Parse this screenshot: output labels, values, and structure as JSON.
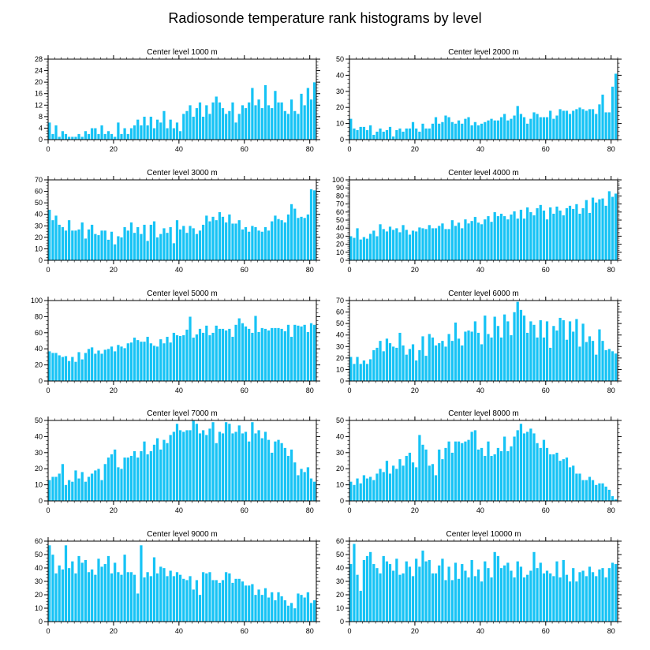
{
  "title": "Radiosonde temperature rank histograms by level",
  "bar_color": "#16c3f5",
  "bar_edge_color": "#ffffff",
  "chart_data": [
    {
      "type": "bar",
      "title": "Center level 1000 m",
      "x_start": 0,
      "xlim": [
        0,
        82
      ],
      "xticks": [
        0,
        20,
        40,
        60,
        80
      ],
      "ylim": [
        0,
        28
      ],
      "yticks": [
        0,
        4,
        8,
        12,
        16,
        20,
        24,
        28
      ],
      "values": [
        6,
        2,
        5,
        1,
        3,
        2,
        1,
        1,
        1,
        2,
        1,
        3,
        2,
        4,
        4,
        2,
        5,
        2,
        3,
        2,
        1,
        6,
        2,
        4,
        2,
        4,
        5,
        7,
        5,
        8,
        5,
        8,
        4,
        7,
        6,
        10,
        4,
        7,
        4,
        6,
        3,
        9,
        10,
        12,
        8,
        11,
        13,
        8,
        12,
        9,
        13,
        15,
        13,
        11,
        9,
        10,
        13,
        6,
        9,
        12,
        11,
        13,
        18,
        12,
        14,
        11,
        19,
        12,
        11,
        17,
        13,
        13,
        10,
        9,
        14,
        10,
        9,
        16,
        12,
        18,
        14,
        20
      ]
    },
    {
      "type": "bar",
      "title": "Center level 2000 m",
      "x_start": 0,
      "xlim": [
        0,
        82
      ],
      "xticks": [
        0,
        20,
        40,
        60,
        80
      ],
      "ylim": [
        0,
        50
      ],
      "yticks": [
        0,
        10,
        20,
        30,
        40,
        50
      ],
      "values": [
        13,
        7,
        6,
        8,
        8,
        6,
        9,
        3,
        5,
        7,
        5,
        6,
        8,
        2,
        6,
        7,
        5,
        7,
        7,
        11,
        7,
        5,
        10,
        7,
        7,
        10,
        14,
        10,
        11,
        15,
        14,
        11,
        10,
        12,
        10,
        13,
        14,
        9,
        11,
        9,
        10,
        11,
        12,
        13,
        12,
        12,
        14,
        16,
        12,
        13,
        15,
        21,
        16,
        14,
        10,
        13,
        17,
        16,
        14,
        14,
        14,
        18,
        13,
        15,
        19,
        18,
        18,
        16,
        18,
        19,
        20,
        19,
        18,
        19,
        19,
        16,
        22,
        28,
        17,
        17,
        33,
        41
      ]
    },
    {
      "type": "bar",
      "title": "Center level 3000 m",
      "x_start": 0,
      "xlim": [
        0,
        82
      ],
      "xticks": [
        0,
        20,
        40,
        60,
        80
      ],
      "ylim": [
        0,
        70
      ],
      "yticks": [
        0,
        10,
        20,
        30,
        40,
        50,
        60,
        70
      ],
      "values": [
        44,
        35,
        39,
        31,
        29,
        26,
        35,
        26,
        26,
        27,
        33,
        19,
        27,
        31,
        23,
        22,
        26,
        26,
        18,
        25,
        14,
        21,
        20,
        29,
        26,
        33,
        24,
        29,
        23,
        31,
        17,
        31,
        34,
        20,
        23,
        28,
        24,
        29,
        15,
        35,
        27,
        30,
        24,
        30,
        28,
        23,
        26,
        31,
        39,
        34,
        38,
        35,
        42,
        38,
        33,
        40,
        32,
        32,
        35,
        27,
        29,
        25,
        30,
        29,
        26,
        25,
        29,
        26,
        34,
        39,
        36,
        35,
        33,
        40,
        49,
        45,
        37,
        38,
        37,
        40,
        62,
        61
      ]
    },
    {
      "type": "bar",
      "title": "Center level 4000 m",
      "x_start": 0,
      "xlim": [
        0,
        82
      ],
      "xticks": [
        0,
        20,
        40,
        60,
        80
      ],
      "ylim": [
        0,
        100
      ],
      "yticks": [
        0,
        10,
        20,
        30,
        40,
        50,
        60,
        70,
        80,
        90,
        100
      ],
      "values": [
        30,
        28,
        40,
        26,
        29,
        27,
        33,
        37,
        30,
        45,
        39,
        36,
        42,
        38,
        40,
        35,
        44,
        38,
        32,
        37,
        36,
        41,
        40,
        39,
        44,
        40,
        40,
        43,
        46,
        39,
        39,
        50,
        43,
        47,
        40,
        51,
        46,
        49,
        54,
        47,
        45,
        51,
        55,
        48,
        60,
        55,
        58,
        55,
        51,
        57,
        61,
        52,
        63,
        52,
        66,
        60,
        56,
        65,
        69,
        62,
        51,
        66,
        58,
        67,
        62,
        56,
        65,
        68,
        64,
        70,
        58,
        65,
        75,
        59,
        78,
        72,
        76,
        77,
        68,
        86,
        79,
        83
      ]
    },
    {
      "type": "bar",
      "title": "Center level 5000 m",
      "x_start": 0,
      "xlim": [
        0,
        82
      ],
      "xticks": [
        0,
        20,
        40,
        60,
        80
      ],
      "ylim": [
        0,
        100
      ],
      "yticks": [
        0,
        20,
        40,
        60,
        80,
        100
      ],
      "values": [
        37,
        35,
        35,
        32,
        30,
        31,
        25,
        30,
        24,
        36,
        27,
        35,
        40,
        42,
        34,
        38,
        34,
        39,
        40,
        43,
        37,
        45,
        43,
        41,
        47,
        48,
        54,
        51,
        49,
        49,
        55,
        47,
        44,
        43,
        52,
        47,
        55,
        48,
        60,
        57,
        56,
        57,
        64,
        80,
        54,
        58,
        65,
        60,
        69,
        57,
        60,
        69,
        65,
        65,
        63,
        65,
        55,
        70,
        78,
        72,
        68,
        65,
        60,
        81,
        61,
        66,
        65,
        63,
        66,
        66,
        66,
        65,
        62,
        70,
        55,
        70,
        69,
        68,
        70,
        61,
        72,
        70
      ]
    },
    {
      "type": "bar",
      "title": "Center level 6000 m",
      "x_start": 0,
      "xlim": [
        0,
        82
      ],
      "xticks": [
        0,
        20,
        40,
        60,
        80
      ],
      "ylim": [
        0,
        70
      ],
      "yticks": [
        0,
        10,
        20,
        30,
        40,
        50,
        60,
        70
      ],
      "values": [
        21,
        15,
        21,
        15,
        18,
        15,
        19,
        27,
        29,
        35,
        26,
        37,
        33,
        30,
        29,
        42,
        31,
        23,
        28,
        32,
        18,
        27,
        39,
        22,
        41,
        38,
        31,
        33,
        35,
        30,
        41,
        35,
        51,
        37,
        31,
        43,
        44,
        43,
        52,
        42,
        32,
        57,
        41,
        38,
        56,
        48,
        38,
        58,
        52,
        40,
        60,
        69,
        62,
        57,
        42,
        52,
        49,
        38,
        53,
        38,
        52,
        29,
        48,
        44,
        55,
        53,
        36,
        52,
        43,
        54,
        30,
        50,
        34,
        39,
        35,
        23,
        45,
        35,
        27,
        28,
        26,
        24
      ]
    },
    {
      "type": "bar",
      "title": "Center level 7000 m",
      "x_start": 0,
      "xlim": [
        0,
        82
      ],
      "xticks": [
        0,
        20,
        40,
        60,
        80
      ],
      "ylim": [
        0,
        50
      ],
      "yticks": [
        0,
        10,
        20,
        30,
        40,
        50
      ],
      "values": [
        13,
        15,
        15,
        17,
        23,
        10,
        13,
        12,
        19,
        14,
        18,
        12,
        15,
        17,
        19,
        20,
        13,
        23,
        27,
        29,
        32,
        21,
        20,
        27,
        27,
        28,
        31,
        27,
        31,
        37,
        29,
        31,
        35,
        39,
        32,
        38,
        36,
        41,
        43,
        48,
        44,
        43,
        44,
        44,
        50,
        48,
        42,
        44,
        41,
        45,
        49,
        36,
        43,
        42,
        49,
        48,
        42,
        43,
        47,
        42,
        43,
        37,
        49,
        42,
        44,
        39,
        43,
        38,
        30,
        37,
        38,
        36,
        33,
        28,
        32,
        24,
        16,
        20,
        18,
        21,
        14,
        12
      ]
    },
    {
      "type": "bar",
      "title": "Center level 8000 m",
      "x_start": 0,
      "xlim": [
        0,
        82
      ],
      "xticks": [
        0,
        20,
        40,
        60,
        80
      ],
      "ylim": [
        0,
        50
      ],
      "yticks": [
        0,
        10,
        20,
        30,
        40,
        50
      ],
      "values": [
        12,
        10,
        14,
        11,
        16,
        14,
        15,
        13,
        17,
        20,
        18,
        25,
        17,
        22,
        20,
        26,
        22,
        28,
        30,
        24,
        21,
        41,
        35,
        32,
        22,
        23,
        16,
        32,
        26,
        33,
        37,
        30,
        37,
        37,
        36,
        37,
        38,
        43,
        44,
        32,
        33,
        28,
        37,
        28,
        29,
        33,
        31,
        40,
        31,
        34,
        40,
        44,
        48,
        42,
        43,
        45,
        42,
        36,
        33,
        38,
        33,
        29,
        29,
        30,
        25,
        26,
        27,
        21,
        22,
        17,
        17,
        13,
        13,
        15,
        13,
        10,
        11,
        11,
        9,
        7,
        3,
        1
      ]
    },
    {
      "type": "bar",
      "title": "Center level 9000 m",
      "x_start": 0,
      "xlim": [
        0,
        82
      ],
      "xticks": [
        0,
        20,
        40,
        60,
        80
      ],
      "ylim": [
        0,
        60
      ],
      "yticks": [
        0,
        10,
        20,
        30,
        40,
        50,
        60
      ],
      "values": [
        57,
        50,
        36,
        42,
        39,
        57,
        40,
        45,
        36,
        49,
        44,
        46,
        37,
        39,
        35,
        47,
        41,
        43,
        49,
        36,
        44,
        37,
        35,
        50,
        37,
        37,
        35,
        21,
        57,
        33,
        37,
        34,
        48,
        36,
        41,
        40,
        34,
        38,
        34,
        37,
        35,
        32,
        31,
        34,
        24,
        31,
        20,
        37,
        36,
        37,
        31,
        31,
        29,
        31,
        37,
        36,
        29,
        32,
        32,
        30,
        27,
        27,
        28,
        20,
        24,
        20,
        25,
        18,
        22,
        16,
        22,
        19,
        16,
        12,
        14,
        10,
        21,
        20,
        18,
        22,
        14,
        16
      ]
    },
    {
      "type": "bar",
      "title": "Center level 10000 m",
      "x_start": 0,
      "xlim": [
        0,
        82
      ],
      "xticks": [
        0,
        20,
        40,
        60,
        80
      ],
      "ylim": [
        0,
        60
      ],
      "yticks": [
        0,
        10,
        20,
        30,
        40,
        50,
        60
      ],
      "values": [
        43,
        58,
        35,
        23,
        46,
        49,
        52,
        43,
        40,
        36,
        49,
        45,
        43,
        38,
        47,
        35,
        36,
        45,
        41,
        34,
        47,
        41,
        53,
        45,
        46,
        36,
        36,
        42,
        47,
        31,
        41,
        31,
        44,
        32,
        43,
        38,
        33,
        46,
        34,
        39,
        30,
        45,
        40,
        33,
        52,
        49,
        40,
        42,
        44,
        38,
        33,
        45,
        41,
        33,
        35,
        38,
        52,
        40,
        44,
        36,
        38,
        36,
        34,
        45,
        33,
        46,
        35,
        30,
        40,
        30,
        37,
        38,
        34,
        41,
        37,
        34,
        39,
        40,
        33,
        40,
        44,
        43
      ]
    }
  ]
}
